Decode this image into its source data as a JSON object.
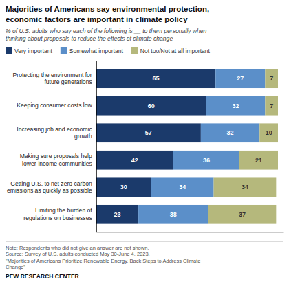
{
  "chart_data": {
    "type": "bar",
    "orientation": "horizontal",
    "stacked": true,
    "data_labels": true,
    "tick_labels": "y",
    "title": "Majorities of Americans say environmental protection,\neconomic factors are important in climate policy",
    "subtitle": "% of U.S. adults who say each of the following is __ to them personally when\nthinking about proposals to reduce the effects of climate change",
    "categories": [
      "Protecting the environment for\nfuture generations",
      "Keeping consumer costs low",
      "Increasing job and economic\ngrowth",
      "Making sure proposals help\nlower-income communities",
      "Getting U.S. to net zero carbon\nemissions as quickly as possible",
      "Limiting the burden of\nregulations on businesses"
    ],
    "series": [
      {
        "name": "Very important",
        "color": "#1b3a6b",
        "values": [
          65,
          60,
          57,
          42,
          30,
          23
        ]
      },
      {
        "name": "Somewhat important",
        "color": "#5b8fc9",
        "values": [
          27,
          32,
          32,
          36,
          34,
          38
        ]
      },
      {
        "name": "Not too/Not at all important",
        "color": "#b5b87c",
        "values": [
          7,
          7,
          10,
          21,
          34,
          37
        ]
      }
    ],
    "xlim": [
      0,
      102
    ],
    "note": "Note: Respondents who did not give an answer are not shown.\nSource: Survey of U.S. adults conducted May 30-June 4, 2023.\n\"Majorities of Americans Prioritize Renewable Energy, Back Steps to Address Climate\nChange\"",
    "source": "PEW RESEARCH CENTER"
  }
}
